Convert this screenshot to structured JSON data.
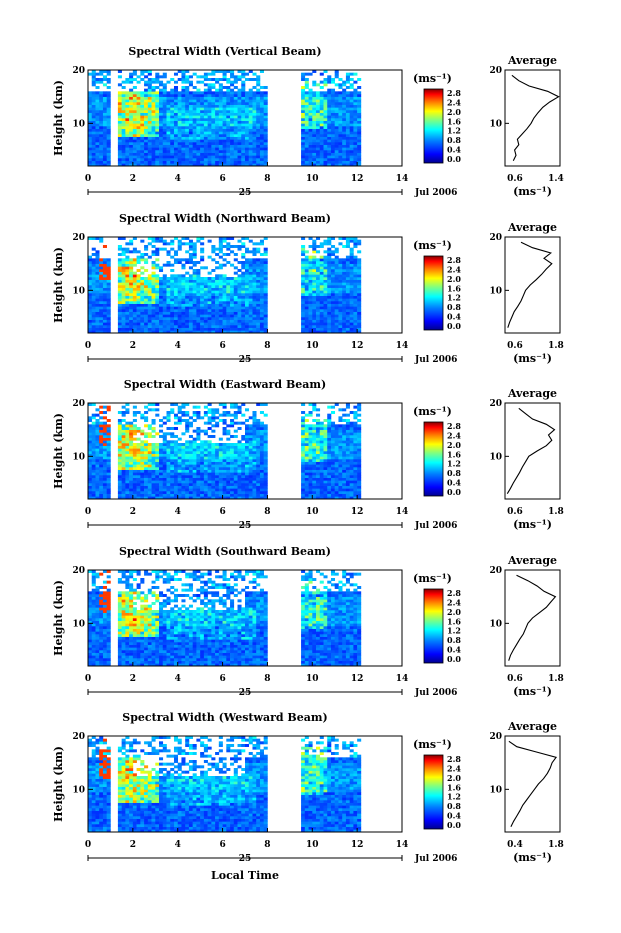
{
  "figure": {
    "date_label": "Jul 2006",
    "day_label": "25",
    "xlabel": "Local Time",
    "ylabel": "Height (km)",
    "unit_label": "(ms⁻¹)",
    "avg_title": "Average",
    "avg_xlabel": "(ms⁻¹)",
    "x_ticks": [
      "0",
      "2",
      "4",
      "6",
      "8",
      "10",
      "12",
      "14"
    ],
    "y_ticks": [
      "10",
      "20"
    ],
    "colorbar_ticks": [
      "2.8",
      "2.4",
      "2.0",
      "1.6",
      "1.2",
      "0.8",
      "0.4",
      "0.0"
    ],
    "colormap": [
      "#00008f",
      "#0000ff",
      "#0080ff",
      "#00ffff",
      "#80ff80",
      "#ffff00",
      "#ff8000",
      "#ff0000",
      "#800000"
    ]
  },
  "chart_data": [
    {
      "type": "heatmap",
      "title": "Spectral Width (Vertical Beam)",
      "xlabel": "",
      "ylabel": "Height (km)",
      "xlim": [
        0,
        14
      ],
      "ylim": [
        2,
        20
      ],
      "clim": [
        0.0,
        3.0
      ],
      "data_gaps": [
        [
          1.0,
          1.3
        ],
        [
          8.0,
          9.5
        ],
        [
          12.1,
          14
        ]
      ],
      "average_profile": {
        "xlim": [
          0.6,
          1.4
        ],
        "x_ticks": [
          "0.6",
          "1.4"
        ],
        "height": [
          3,
          4,
          5,
          6,
          7,
          8,
          9,
          10,
          11,
          12,
          13,
          14,
          15,
          16,
          17,
          18,
          19
        ],
        "width": [
          0.72,
          0.76,
          0.74,
          0.8,
          0.78,
          0.85,
          0.92,
          0.98,
          1.02,
          1.08,
          1.15,
          1.25,
          1.38,
          1.22,
          0.95,
          0.8,
          0.7
        ]
      }
    },
    {
      "type": "heatmap",
      "title": "Spectral Width (Northward Beam)",
      "xlabel": "",
      "ylabel": "Height (km)",
      "xlim": [
        0,
        14
      ],
      "ylim": [
        2,
        20
      ],
      "clim": [
        0.0,
        3.0
      ],
      "data_gaps": [
        [
          1.0,
          1.3
        ],
        [
          8.0,
          9.5
        ],
        [
          12.1,
          14
        ]
      ],
      "average_profile": {
        "xlim": [
          0.6,
          1.8
        ],
        "x_ticks": [
          "0.6",
          "1.8"
        ],
        "height": [
          3,
          4,
          5,
          6,
          7,
          8,
          9,
          10,
          11,
          12,
          13,
          14,
          15,
          16,
          17,
          18,
          19
        ],
        "width": [
          0.66,
          0.7,
          0.75,
          0.8,
          0.88,
          0.95,
          1.0,
          1.05,
          1.15,
          1.28,
          1.4,
          1.5,
          1.62,
          1.45,
          1.6,
          1.2,
          0.95
        ]
      }
    },
    {
      "type": "heatmap",
      "title": "Spectral Width (Eastward Beam)",
      "xlabel": "",
      "ylabel": "Height (km)",
      "xlim": [
        0,
        14
      ],
      "ylim": [
        2,
        20
      ],
      "clim": [
        0.0,
        3.0
      ],
      "data_gaps": [
        [
          1.0,
          1.3
        ],
        [
          8.0,
          9.5
        ],
        [
          12.1,
          14
        ]
      ],
      "average_profile": {
        "xlim": [
          0.6,
          1.8
        ],
        "x_ticks": [
          "0.6",
          "1.8"
        ],
        "height": [
          3,
          4,
          5,
          6,
          7,
          8,
          9,
          10,
          11,
          12,
          13,
          14,
          15,
          16,
          17,
          18,
          19
        ],
        "width": [
          0.65,
          0.72,
          0.78,
          0.85,
          0.92,
          0.98,
          1.05,
          1.12,
          1.3,
          1.5,
          1.62,
          1.55,
          1.68,
          1.5,
          1.2,
          1.05,
          0.9
        ]
      }
    },
    {
      "type": "heatmap",
      "title": "Spectral Width (Southward Beam)",
      "xlabel": "",
      "ylabel": "Height (km)",
      "xlim": [
        0,
        14
      ],
      "ylim": [
        2,
        20
      ],
      "clim": [
        0.0,
        3.0
      ],
      "data_gaps": [
        [
          1.0,
          1.3
        ],
        [
          8.0,
          9.5
        ],
        [
          12.1,
          14
        ]
      ],
      "average_profile": {
        "xlim": [
          0.6,
          1.8
        ],
        "x_ticks": [
          "0.6",
          "1.8"
        ],
        "height": [
          3,
          4,
          5,
          6,
          7,
          8,
          9,
          10,
          11,
          12,
          13,
          14,
          15,
          16,
          17,
          18,
          19
        ],
        "width": [
          0.68,
          0.72,
          0.78,
          0.85,
          0.92,
          1.0,
          1.05,
          1.1,
          1.2,
          1.35,
          1.5,
          1.6,
          1.7,
          1.45,
          1.3,
          1.1,
          0.85
        ]
      }
    },
    {
      "type": "heatmap",
      "title": "Spectral Width (Westward Beam)",
      "xlabel": "Local Time",
      "ylabel": "Height (km)",
      "xlim": [
        0,
        14
      ],
      "ylim": [
        2,
        20
      ],
      "clim": [
        0.0,
        3.0
      ],
      "data_gaps": [
        [
          1.0,
          1.3
        ],
        [
          8.0,
          9.5
        ],
        [
          12.1,
          14
        ]
      ],
      "average_profile": {
        "xlim": [
          0.4,
          1.8
        ],
        "x_ticks": [
          "0.4",
          "1.8"
        ],
        "height": [
          3,
          4,
          5,
          6,
          7,
          8,
          9,
          10,
          11,
          12,
          13,
          14,
          15,
          16,
          17,
          18,
          19
        ],
        "width": [
          0.55,
          0.62,
          0.7,
          0.78,
          0.85,
          0.95,
          1.05,
          1.15,
          1.25,
          1.38,
          1.48,
          1.55,
          1.6,
          1.7,
          1.2,
          0.7,
          0.5
        ]
      }
    }
  ]
}
